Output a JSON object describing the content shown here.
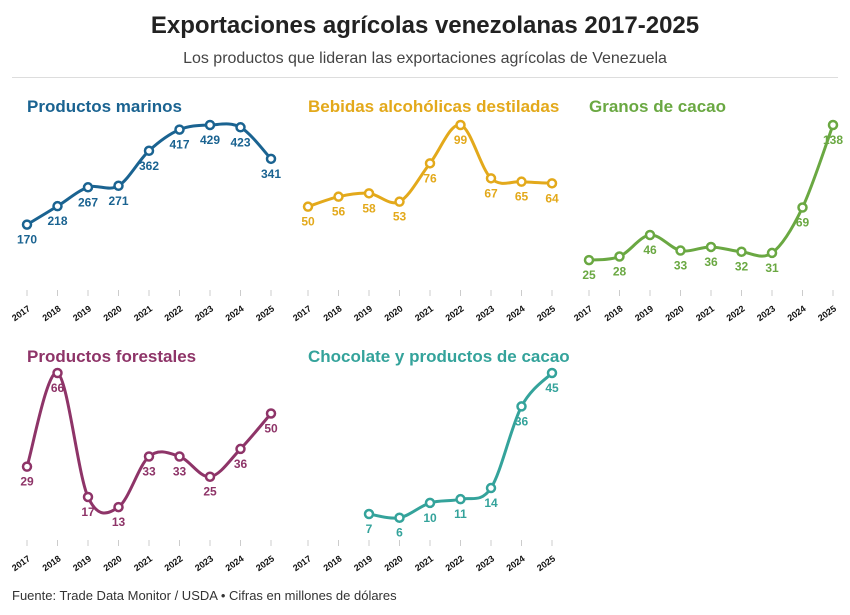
{
  "title": "Exportaciones agrícolas venezolanas 2017-2025",
  "subtitle": "Los productos que lideran las exportaciones agrícolas de Venezuela",
  "footer": "Fuente: Trade Data Monitor / USDA • Cifras en millones de dólares",
  "chart_data": [
    {
      "type": "line",
      "title": "Productos marinos",
      "color": "#1a6391",
      "categories": [
        "2017",
        "2018",
        "2019",
        "2020",
        "2021",
        "2022",
        "2023",
        "2024",
        "2025"
      ],
      "values": [
        170,
        218,
        267,
        271,
        362,
        417,
        429,
        423,
        341
      ]
    },
    {
      "type": "line",
      "title": "Bebidas alcohólicas destiladas",
      "color": "#e3a91b",
      "categories": [
        "2017",
        "2018",
        "2019",
        "2020",
        "2021",
        "2022",
        "2023",
        "2024",
        "2025"
      ],
      "values": [
        50,
        56,
        58,
        53,
        76,
        99,
        67,
        65,
        64
      ]
    },
    {
      "type": "line",
      "title": "Granos de cacao",
      "color": "#6aa842",
      "categories": [
        "2017",
        "2018",
        "2019",
        "2020",
        "2021",
        "2022",
        "2023",
        "2024",
        "2025"
      ],
      "values": [
        25,
        28,
        46,
        33,
        36,
        32,
        31,
        69,
        138
      ]
    },
    {
      "type": "line",
      "title": "Productos forestales",
      "color": "#8e3468",
      "categories": [
        "2017",
        "2018",
        "2019",
        "2020",
        "2021",
        "2022",
        "2023",
        "2024",
        "2025"
      ],
      "values": [
        29,
        66,
        17,
        13,
        33,
        33,
        25,
        36,
        50
      ]
    },
    {
      "type": "line",
      "title": "Chocolate y productos de cacao",
      "color": "#34a39b",
      "categories": [
        "2017",
        "2018",
        "2019",
        "2020",
        "2021",
        "2022",
        "2023",
        "2024",
        "2025"
      ],
      "values": [
        null,
        null,
        7,
        6,
        10,
        11,
        14,
        36,
        45
      ]
    }
  ]
}
